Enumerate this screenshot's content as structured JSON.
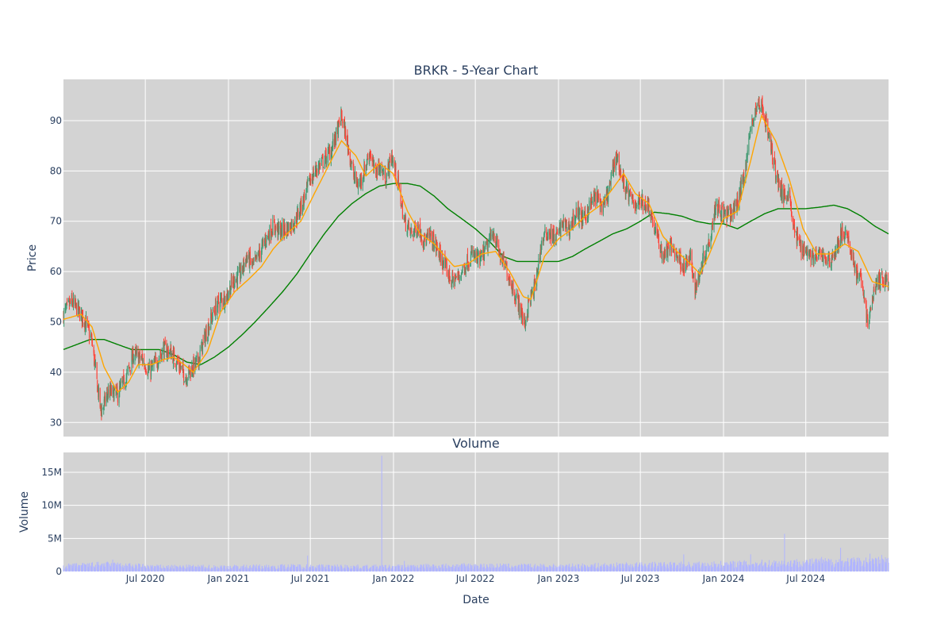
{
  "chart_data": [
    {
      "type": "candlestick",
      "title": "BRKR - 5-Year Chart",
      "ylabel": "Price",
      "xlabel": "",
      "x_range": [
        "2020-01-02",
        "2024-12-31"
      ],
      "ylim": [
        27.2,
        98.2
      ],
      "y_ticks": [
        30,
        40,
        50,
        60,
        70,
        80,
        90
      ],
      "grid": true,
      "legend": "none",
      "colors": {
        "up": "#3d9970",
        "down": "#ff4136",
        "ma_short": "#ffa500",
        "ma_long": "#008000",
        "plot_bg": "#d3d3d3",
        "grid": "#ffffff"
      },
      "price_keypoints": [
        [
          "2020-01-02",
          51.5
        ],
        [
          "2020-01-20",
          54.0
        ],
        [
          "2020-02-05",
          52.0
        ],
        [
          "2020-02-20",
          50.0
        ],
        [
          "2020-03-05",
          46.0
        ],
        [
          "2020-03-16",
          38.0
        ],
        [
          "2020-03-25",
          32.0
        ],
        [
          "2020-04-10",
          36.0
        ],
        [
          "2020-05-01",
          35.5
        ],
        [
          "2020-05-20",
          39.0
        ],
        [
          "2020-06-05",
          43.5
        ],
        [
          "2020-06-25",
          42.5
        ],
        [
          "2020-07-10",
          40.0
        ],
        [
          "2020-07-25",
          42.0
        ],
        [
          "2020-08-10",
          44.5
        ],
        [
          "2020-08-25",
          44.0
        ],
        [
          "2020-09-10",
          42.0
        ],
        [
          "2020-09-28",
          39.0
        ],
        [
          "2020-10-10",
          40.5
        ],
        [
          "2020-10-25",
          42.0
        ],
        [
          "2020-11-10",
          47.0
        ],
        [
          "2020-11-25",
          51.0
        ],
        [
          "2020-12-10",
          54.0
        ],
        [
          "2020-12-28",
          55.0
        ],
        [
          "2021-01-10",
          58.0
        ],
        [
          "2021-01-28",
          59.5
        ],
        [
          "2021-02-10",
          63.0
        ],
        [
          "2021-02-25",
          61.0
        ],
        [
          "2021-03-10",
          63.5
        ],
        [
          "2021-03-25",
          66.5
        ],
        [
          "2021-04-10",
          69.0
        ],
        [
          "2021-04-25",
          68.0
        ],
        [
          "2021-05-10",
          68.5
        ],
        [
          "2021-05-28",
          70.0
        ],
        [
          "2021-06-15",
          74.0
        ],
        [
          "2021-06-30",
          78.0
        ],
        [
          "2021-07-15",
          80.5
        ],
        [
          "2021-07-31",
          82.0
        ],
        [
          "2021-08-15",
          84.0
        ],
        [
          "2021-08-31",
          88.0
        ],
        [
          "2021-09-08",
          91.0
        ],
        [
          "2021-09-20",
          86.0
        ],
        [
          "2021-10-05",
          79.0
        ],
        [
          "2021-10-15",
          77.0
        ],
        [
          "2021-10-28",
          80.0
        ],
        [
          "2021-11-10",
          84.0
        ],
        [
          "2021-11-20",
          79.5
        ],
        [
          "2021-12-01",
          81.0
        ],
        [
          "2021-12-15",
          78.5
        ],
        [
          "2021-12-28",
          83.0
        ],
        [
          "2022-01-10",
          78.0
        ],
        [
          "2022-01-25",
          70.0
        ],
        [
          "2022-02-10",
          67.5
        ],
        [
          "2022-02-25",
          69.0
        ],
        [
          "2022-03-10",
          66.0
        ],
        [
          "2022-03-25",
          67.0
        ],
        [
          "2022-04-10",
          64.0
        ],
        [
          "2022-04-25",
          61.0
        ],
        [
          "2022-05-10",
          58.0
        ],
        [
          "2022-05-25",
          59.0
        ],
        [
          "2022-06-10",
          61.5
        ],
        [
          "2022-06-25",
          63.5
        ],
        [
          "2022-07-10",
          62.0
        ],
        [
          "2022-07-25",
          64.5
        ],
        [
          "2022-08-10",
          68.0
        ],
        [
          "2022-08-25",
          63.0
        ],
        [
          "2022-09-10",
          60.0
        ],
        [
          "2022-09-25",
          56.0
        ],
        [
          "2022-10-10",
          52.0
        ],
        [
          "2022-10-18",
          49.5
        ],
        [
          "2022-10-28",
          54.0
        ],
        [
          "2022-11-10",
          57.0
        ],
        [
          "2022-11-25",
          66.0
        ],
        [
          "2022-12-10",
          68.0
        ],
        [
          "2022-12-25",
          66.5
        ],
        [
          "2023-01-10",
          69.5
        ],
        [
          "2023-01-25",
          68.5
        ],
        [
          "2023-02-10",
          72.0
        ],
        [
          "2023-02-25",
          70.0
        ],
        [
          "2023-03-10",
          73.0
        ],
        [
          "2023-03-25",
          75.0
        ],
        [
          "2023-04-10",
          72.5
        ],
        [
          "2023-04-25",
          77.0
        ],
        [
          "2023-05-08",
          83.5
        ],
        [
          "2023-05-20",
          79.0
        ],
        [
          "2023-06-05",
          75.0
        ],
        [
          "2023-06-20",
          73.5
        ],
        [
          "2023-07-05",
          74.0
        ],
        [
          "2023-07-20",
          73.0
        ],
        [
          "2023-08-05",
          67.5
        ],
        [
          "2023-08-20",
          63.0
        ],
        [
          "2023-09-05",
          65.0
        ],
        [
          "2023-09-20",
          63.5
        ],
        [
          "2023-10-05",
          61.0
        ],
        [
          "2023-10-20",
          62.5
        ],
        [
          "2023-10-31",
          56.5
        ],
        [
          "2023-11-15",
          62.0
        ],
        [
          "2023-11-30",
          66.0
        ],
        [
          "2023-12-15",
          73.5
        ],
        [
          "2023-12-31",
          71.5
        ],
        [
          "2024-01-15",
          71.0
        ],
        [
          "2024-01-31",
          73.5
        ],
        [
          "2024-02-15",
          79.0
        ],
        [
          "2024-02-28",
          87.0
        ],
        [
          "2024-03-10",
          92.0
        ],
        [
          "2024-03-25",
          93.5
        ],
        [
          "2024-04-10",
          87.0
        ],
        [
          "2024-04-25",
          80.0
        ],
        [
          "2024-05-10",
          75.0
        ],
        [
          "2024-05-25",
          76.0
        ],
        [
          "2024-06-05",
          68.0
        ],
        [
          "2024-06-20",
          65.0
        ],
        [
          "2024-07-05",
          64.0
        ],
        [
          "2024-07-20",
          62.5
        ],
        [
          "2024-08-05",
          63.5
        ],
        [
          "2024-08-20",
          62.0
        ],
        [
          "2024-09-05",
          64.0
        ],
        [
          "2024-09-20",
          68.0
        ],
        [
          "2024-10-05",
          65.5
        ],
        [
          "2024-10-20",
          60.0
        ],
        [
          "2024-11-05",
          57.0
        ],
        [
          "2024-11-15",
          49.0
        ],
        [
          "2024-11-30",
          57.0
        ],
        [
          "2024-12-15",
          58.5
        ],
        [
          "2024-12-31",
          58.0
        ]
      ],
      "ma_short_keypoints": [
        [
          "2020-01-02",
          50.5
        ],
        [
          "2020-02-10",
          51.5
        ],
        [
          "2020-03-05",
          49.0
        ],
        [
          "2020-04-01",
          41.0
        ],
        [
          "2020-05-01",
          36.0
        ],
        [
          "2020-05-25",
          38.0
        ],
        [
          "2020-06-15",
          41.5
        ],
        [
          "2020-07-15",
          41.5
        ],
        [
          "2020-08-10",
          42.5
        ],
        [
          "2020-09-01",
          43.0
        ],
        [
          "2020-09-25",
          41.5
        ],
        [
          "2020-10-15",
          40.0
        ],
        [
          "2020-11-15",
          44.0
        ],
        [
          "2020-12-15",
          52.0
        ],
        [
          "2021-01-15",
          56.0
        ],
        [
          "2021-02-15",
          58.5
        ],
        [
          "2021-03-15",
          61.0
        ],
        [
          "2021-04-10",
          64.5
        ],
        [
          "2021-05-10",
          67.5
        ],
        [
          "2021-06-10",
          70.0
        ],
        [
          "2021-07-10",
          75.5
        ],
        [
          "2021-08-10",
          81.0
        ],
        [
          "2021-09-08",
          86.0
        ],
        [
          "2021-10-10",
          83.0
        ],
        [
          "2021-11-01",
          79.0
        ],
        [
          "2021-12-01",
          81.5
        ],
        [
          "2021-12-31",
          79.5
        ],
        [
          "2022-02-01",
          72.0
        ],
        [
          "2022-03-01",
          67.5
        ],
        [
          "2022-04-01",
          65.5
        ],
        [
          "2022-05-15",
          61.0
        ],
        [
          "2022-06-15",
          61.5
        ],
        [
          "2022-07-15",
          63.5
        ],
        [
          "2022-08-15",
          64.0
        ],
        [
          "2022-09-15",
          60.0
        ],
        [
          "2022-10-15",
          55.0
        ],
        [
          "2022-11-01",
          54.5
        ],
        [
          "2022-12-01",
          63.0
        ],
        [
          "2023-01-01",
          66.5
        ],
        [
          "2023-02-01",
          68.5
        ],
        [
          "2023-03-01",
          71.0
        ],
        [
          "2023-04-01",
          73.0
        ],
        [
          "2023-05-01",
          76.5
        ],
        [
          "2023-05-25",
          79.5
        ],
        [
          "2023-06-20",
          75.5
        ],
        [
          "2023-07-20",
          73.5
        ],
        [
          "2023-08-20",
          67.0
        ],
        [
          "2023-09-20",
          64.0
        ],
        [
          "2023-10-20",
          61.5
        ],
        [
          "2023-11-10",
          59.5
        ],
        [
          "2023-12-01",
          63.5
        ],
        [
          "2024-01-01",
          70.5
        ],
        [
          "2024-02-01",
          72.0
        ],
        [
          "2024-03-01",
          82.0
        ],
        [
          "2024-03-25",
          91.0
        ],
        [
          "2024-04-25",
          86.0
        ],
        [
          "2024-05-25",
          78.5
        ],
        [
          "2024-06-25",
          68.5
        ],
        [
          "2024-07-25",
          63.5
        ],
        [
          "2024-08-25",
          63.5
        ],
        [
          "2024-09-25",
          65.5
        ],
        [
          "2024-10-25",
          64.0
        ],
        [
          "2024-11-25",
          58.0
        ],
        [
          "2024-12-31",
          57.0
        ]
      ],
      "ma_long_keypoints": [
        [
          "2020-01-02",
          44.5
        ],
        [
          "2020-03-01",
          46.5
        ],
        [
          "2020-04-01",
          46.5
        ],
        [
          "2020-05-01",
          45.5
        ],
        [
          "2020-06-01",
          44.5
        ],
        [
          "2020-08-01",
          44.5
        ],
        [
          "2020-09-01",
          43.5
        ],
        [
          "2020-10-01",
          42.0
        ],
        [
          "2020-11-01",
          41.5
        ],
        [
          "2020-12-01",
          43.0
        ],
        [
          "2021-01-01",
          45.0
        ],
        [
          "2021-02-01",
          47.5
        ],
        [
          "2021-03-01",
          50.0
        ],
        [
          "2021-04-01",
          53.0
        ],
        [
          "2021-05-01",
          56.0
        ],
        [
          "2021-06-01",
          59.5
        ],
        [
          "2021-07-01",
          63.5
        ],
        [
          "2021-08-01",
          67.5
        ],
        [
          "2021-09-01",
          71.0
        ],
        [
          "2021-10-01",
          73.5
        ],
        [
          "2021-11-01",
          75.5
        ],
        [
          "2021-12-01",
          77.0
        ],
        [
          "2022-01-01",
          77.5
        ],
        [
          "2022-02-01",
          77.5
        ],
        [
          "2022-03-01",
          77.0
        ],
        [
          "2022-04-01",
          75.0
        ],
        [
          "2022-05-01",
          72.5
        ],
        [
          "2022-06-01",
          70.5
        ],
        [
          "2022-07-01",
          68.5
        ],
        [
          "2022-08-01",
          66.0
        ],
        [
          "2022-09-01",
          63.0
        ],
        [
          "2022-10-01",
          62.0
        ],
        [
          "2022-11-01",
          62.0
        ],
        [
          "2022-12-01",
          62.0
        ],
        [
          "2023-01-01",
          62.0
        ],
        [
          "2023-02-01",
          63.0
        ],
        [
          "2023-03-01",
          64.5
        ],
        [
          "2023-04-01",
          66.0
        ],
        [
          "2023-05-01",
          67.5
        ],
        [
          "2023-06-01",
          68.5
        ],
        [
          "2023-07-01",
          70.0
        ],
        [
          "2023-08-01",
          71.8
        ],
        [
          "2023-09-01",
          71.5
        ],
        [
          "2023-10-01",
          71.0
        ],
        [
          "2023-11-01",
          70.0
        ],
        [
          "2023-12-01",
          69.5
        ],
        [
          "2024-01-01",
          69.5
        ],
        [
          "2024-02-01",
          68.5
        ],
        [
          "2024-03-01",
          70.0
        ],
        [
          "2024-04-01",
          71.5
        ],
        [
          "2024-05-01",
          72.5
        ],
        [
          "2024-06-01",
          72.5
        ],
        [
          "2024-07-01",
          72.5
        ],
        [
          "2024-08-01",
          72.8
        ],
        [
          "2024-09-01",
          73.2
        ],
        [
          "2024-10-01",
          72.5
        ],
        [
          "2024-11-01",
          71.0
        ],
        [
          "2024-12-01",
          69.0
        ],
        [
          "2024-12-31",
          67.5
        ]
      ],
      "x_ticks": [
        "Jul 2020",
        "Jan 2021",
        "Jul 2021",
        "Jan 2022",
        "Jul 2022",
        "Jan 2023",
        "Jul 2023",
        "Jan 2024",
        "Jul 2024"
      ]
    },
    {
      "type": "bar",
      "title": "Volume",
      "ylabel": "Volume",
      "xlabel": "Date",
      "x_range": [
        "2020-01-02",
        "2024-12-31"
      ],
      "ylim": [
        0,
        18000000
      ],
      "y_ticks": [
        0,
        5000000,
        10000000,
        15000000
      ],
      "y_tick_labels": [
        "0",
        "5M",
        "10M",
        "15M"
      ],
      "grid": true,
      "colors": {
        "bar": "#b0b4ff",
        "plot_bg": "#d3d3d3",
        "grid": "#ffffff"
      },
      "base_volume_keypoints": [
        [
          "2020-01-02",
          0.9
        ],
        [
          "2020-04-01",
          1.2
        ],
        [
          "2020-08-01",
          0.8
        ],
        [
          "2021-01-01",
          0.8
        ],
        [
          "2021-06-01",
          0.9
        ],
        [
          "2021-12-01",
          0.8
        ],
        [
          "2022-06-01",
          1.0
        ],
        [
          "2023-01-01",
          0.9
        ],
        [
          "2023-06-01",
          1.1
        ],
        [
          "2023-12-01",
          1.2
        ],
        [
          "2024-06-01",
          1.5
        ],
        [
          "2024-12-31",
          1.8
        ]
      ],
      "volume_spikes": [
        [
          "2021-12-06",
          17.5
        ],
        [
          "2024-05-15",
          5.7
        ],
        [
          "2024-03-01",
          2.6
        ],
        [
          "2023-10-05",
          2.6
        ],
        [
          "2021-06-25",
          2.4
        ],
        [
          "2024-09-15",
          3.6
        ],
        [
          "2024-11-20",
          2.7
        ],
        [
          "2020-04-20",
          1.8
        ],
        [
          "2022-01-25",
          1.6
        ],
        [
          "2024-08-05",
          2.2
        ],
        [
          "2024-12-15",
          2.5
        ],
        [
          "2024-07-10",
          1.9
        ]
      ],
      "volume_unit": "millions",
      "x_ticks": [
        "Jul 2020",
        "Jan 2021",
        "Jul 2021",
        "Jan 2022",
        "Jul 2022",
        "Jan 2023",
        "Jul 2023",
        "Jan 2024",
        "Jul 2024"
      ]
    }
  ]
}
